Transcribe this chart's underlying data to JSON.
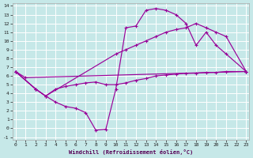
{
  "background_color": "#c6e8e8",
  "grid_color": "#b0d8d8",
  "line_color": "#990099",
  "xlabel": "Windchill (Refroidissement éolien,°C)",
  "xlim": [
    -0.3,
    23.3
  ],
  "ylim": [
    -1.3,
    14.3
  ],
  "xticks": [
    0,
    1,
    2,
    3,
    4,
    5,
    6,
    7,
    8,
    9,
    10,
    11,
    12,
    13,
    14,
    15,
    16,
    17,
    18,
    19,
    20,
    21,
    22,
    23
  ],
  "yticks": [
    -1,
    0,
    1,
    2,
    3,
    4,
    5,
    6,
    7,
    8,
    9,
    10,
    11,
    12,
    13,
    14
  ],
  "curve1": {
    "x": [
      0,
      2,
      3,
      4,
      5,
      6,
      7,
      8,
      9,
      10,
      11,
      12,
      13,
      14,
      15,
      16,
      17,
      18,
      19,
      20,
      21,
      23
    ],
    "y": [
      6.5,
      4.5,
      3.7,
      3.0,
      2.5,
      2.3,
      1.8,
      -0.2,
      -0.1,
      4.5,
      11.5,
      11.7,
      13.5,
      13.7,
      13.5,
      13.0,
      12.0,
      9.5,
      11.0,
      9.5,
      8.5,
      6.5
    ]
  },
  "curve2": {
    "x": [
      0,
      2,
      3,
      10,
      11,
      12,
      13,
      14,
      15,
      16,
      17,
      18,
      19,
      20,
      21,
      23
    ],
    "y": [
      6.5,
      4.5,
      3.7,
      8.5,
      9.0,
      9.5,
      10.0,
      10.5,
      11.0,
      11.3,
      11.5,
      12.0,
      11.5,
      11.0,
      10.5,
      6.5
    ]
  },
  "curve3": {
    "x": [
      0,
      2,
      3,
      4,
      5,
      6,
      7,
      8,
      9,
      10,
      11,
      12,
      13,
      14,
      15,
      16,
      17,
      18,
      19,
      20,
      21,
      23
    ],
    "y": [
      6.5,
      4.5,
      3.7,
      4.5,
      4.8,
      5.0,
      5.2,
      5.3,
      5.0,
      5.0,
      5.2,
      5.5,
      5.7,
      6.0,
      6.1,
      6.2,
      6.3,
      6.3,
      6.4,
      6.4,
      6.5,
      6.5
    ]
  },
  "curve4": {
    "x": [
      0,
      1,
      23
    ],
    "y": [
      6.5,
      5.8,
      6.5
    ]
  }
}
